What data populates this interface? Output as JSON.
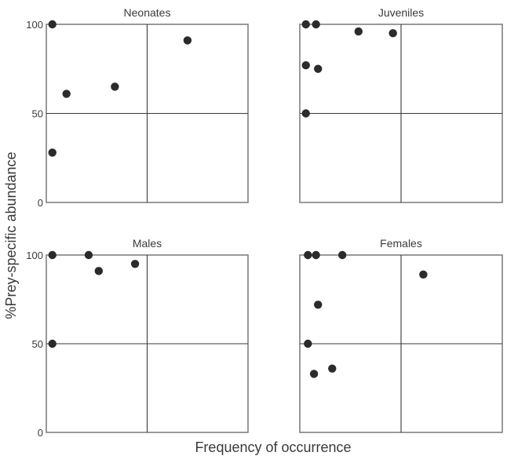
{
  "chart_data": {
    "type": "scatter",
    "layout": "2x2 small multiples, shared axes",
    "xlabel": "Frequency of occurrence",
    "ylabel": "%Prey-specific abundance",
    "xlim": [
      0,
      100
    ],
    "ylim": [
      0,
      100
    ],
    "y_ticks": [
      0,
      50,
      100
    ],
    "x_ticks": [],
    "quadrant_lines": {
      "x": 50,
      "y": 50
    },
    "grid": false,
    "legend": null,
    "marker_color": "#2b2b2b",
    "panels": [
      {
        "title": "Neonates",
        "points": [
          {
            "x": 3,
            "y": 100
          },
          {
            "x": 10,
            "y": 61
          },
          {
            "x": 34,
            "y": 65
          },
          {
            "x": 3,
            "y": 28
          },
          {
            "x": 70,
            "y": 91
          }
        ]
      },
      {
        "title": "Juveniles",
        "points": [
          {
            "x": 3,
            "y": 100
          },
          {
            "x": 8,
            "y": 100
          },
          {
            "x": 29,
            "y": 96
          },
          {
            "x": 46,
            "y": 95
          },
          {
            "x": 3,
            "y": 77
          },
          {
            "x": 9,
            "y": 75
          },
          {
            "x": 3,
            "y": 50
          }
        ]
      },
      {
        "title": "Males",
        "points": [
          {
            "x": 3,
            "y": 100
          },
          {
            "x": 21,
            "y": 100
          },
          {
            "x": 26,
            "y": 91
          },
          {
            "x": 44,
            "y": 95
          },
          {
            "x": 3,
            "y": 50
          }
        ]
      },
      {
        "title": "Females",
        "points": [
          {
            "x": 4,
            "y": 100
          },
          {
            "x": 8,
            "y": 100
          },
          {
            "x": 21,
            "y": 100
          },
          {
            "x": 61,
            "y": 89
          },
          {
            "x": 9,
            "y": 72
          },
          {
            "x": 4,
            "y": 50
          },
          {
            "x": 7,
            "y": 33
          },
          {
            "x": 16,
            "y": 36
          }
        ]
      }
    ]
  },
  "labels": {
    "xlabel": "Frequency of occurrence",
    "ylabel": "%Prey-specific abundance",
    "panel_titles": [
      "Neonates",
      "Juveniles",
      "Males",
      "Females"
    ],
    "y_tick_labels": [
      "100",
      "50",
      "0"
    ]
  }
}
